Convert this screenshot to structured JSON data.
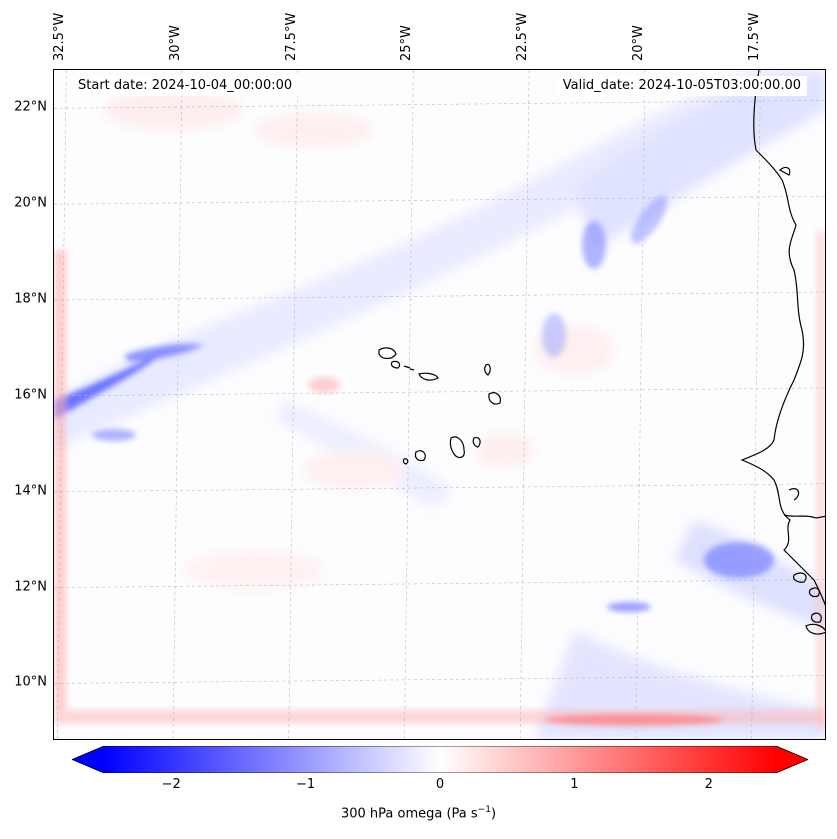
{
  "header": {
    "start_date": "Start date: 2024-10-04_00:00:00",
    "valid_date": "Valid_date: 2024-10-05T03:00:00.00"
  },
  "axes": {
    "longitude_ticks": [
      "32.5°W",
      "30°W",
      "27.5°W",
      "25°W",
      "22.5°W",
      "20°W",
      "17.5°W"
    ],
    "longitude_values": [
      -32.5,
      -30,
      -27.5,
      -25,
      -22.5,
      -20,
      -17.5
    ],
    "latitude_ticks": [
      "22°N",
      "20°N",
      "18°N",
      "16°N",
      "14°N",
      "12°N",
      "10°N"
    ],
    "latitude_values": [
      22,
      20,
      18,
      16,
      14,
      12,
      10
    ],
    "lon_range": [
      -32.7,
      -16.0
    ],
    "lat_range": [
      8.8,
      22.8
    ],
    "gridlines": "dashed"
  },
  "colorbar": {
    "title_prefix": "300 hPa omega (Pa s",
    "title_exp": "−1",
    "title_suffix": ")",
    "tick_labels": [
      "−2",
      "−1",
      "0",
      "1",
      "2"
    ],
    "tick_values": [
      -2,
      -1,
      0,
      1,
      2
    ],
    "range": [
      -2.5,
      2.5
    ],
    "extend": "both",
    "colormap": "bwr",
    "color_negative": "#0000ff",
    "color_zero": "#ffffff",
    "color_positive": "#ff0000"
  },
  "coastline_color": "#000000"
}
